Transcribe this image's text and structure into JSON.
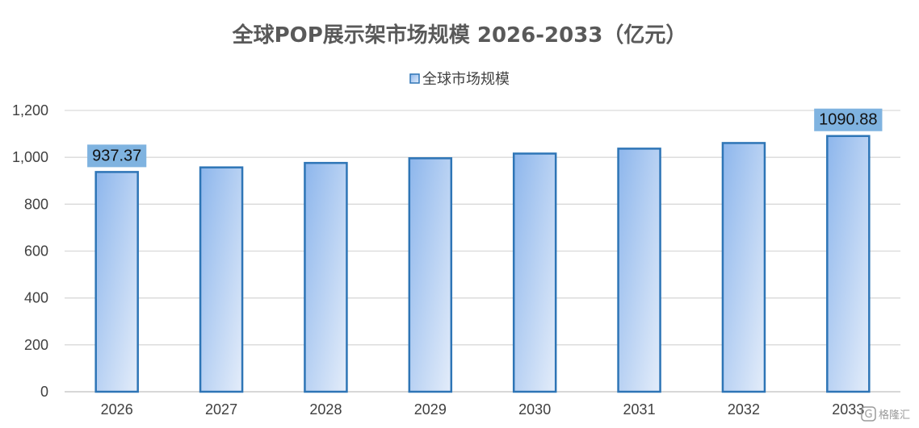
{
  "colors": {
    "bar_stroke": "#2E75B6",
    "bar_fill_start": "#8DB6EC",
    "bar_fill_end": "#E4EDFA",
    "label_bg": "#7FB3E0",
    "grid": "#D9D9D9",
    "axis": "#BFBFBF"
  },
  "watermark": {
    "text": "格隆汇",
    "icon": "g-logo-icon"
  },
  "chart_data": {
    "type": "bar",
    "title": "全球POP展示架市场规模 2026-2033（亿元）",
    "xlabel": "",
    "ylabel": "",
    "legend": {
      "position": "top-center",
      "entries": [
        "全球市场规模"
      ]
    },
    "grid": true,
    "ylim": [
      0,
      1200
    ],
    "yticks": [
      0,
      200,
      400,
      600,
      800,
      1000,
      1200
    ],
    "ytick_labels": [
      "0",
      "200",
      "400",
      "600",
      "800",
      "1,000",
      "1,200"
    ],
    "categories": [
      "2026",
      "2027",
      "2028",
      "2029",
      "2030",
      "2031",
      "2032",
      "2033"
    ],
    "series": [
      {
        "name": "全球市场规模",
        "values": [
          937.37,
          957,
          976,
          996,
          1016,
          1037,
          1061,
          1090.88
        ]
      }
    ],
    "data_labels": [
      {
        "index": 0,
        "text": "937.37"
      },
      {
        "index": 7,
        "text": "1090.88"
      }
    ]
  }
}
